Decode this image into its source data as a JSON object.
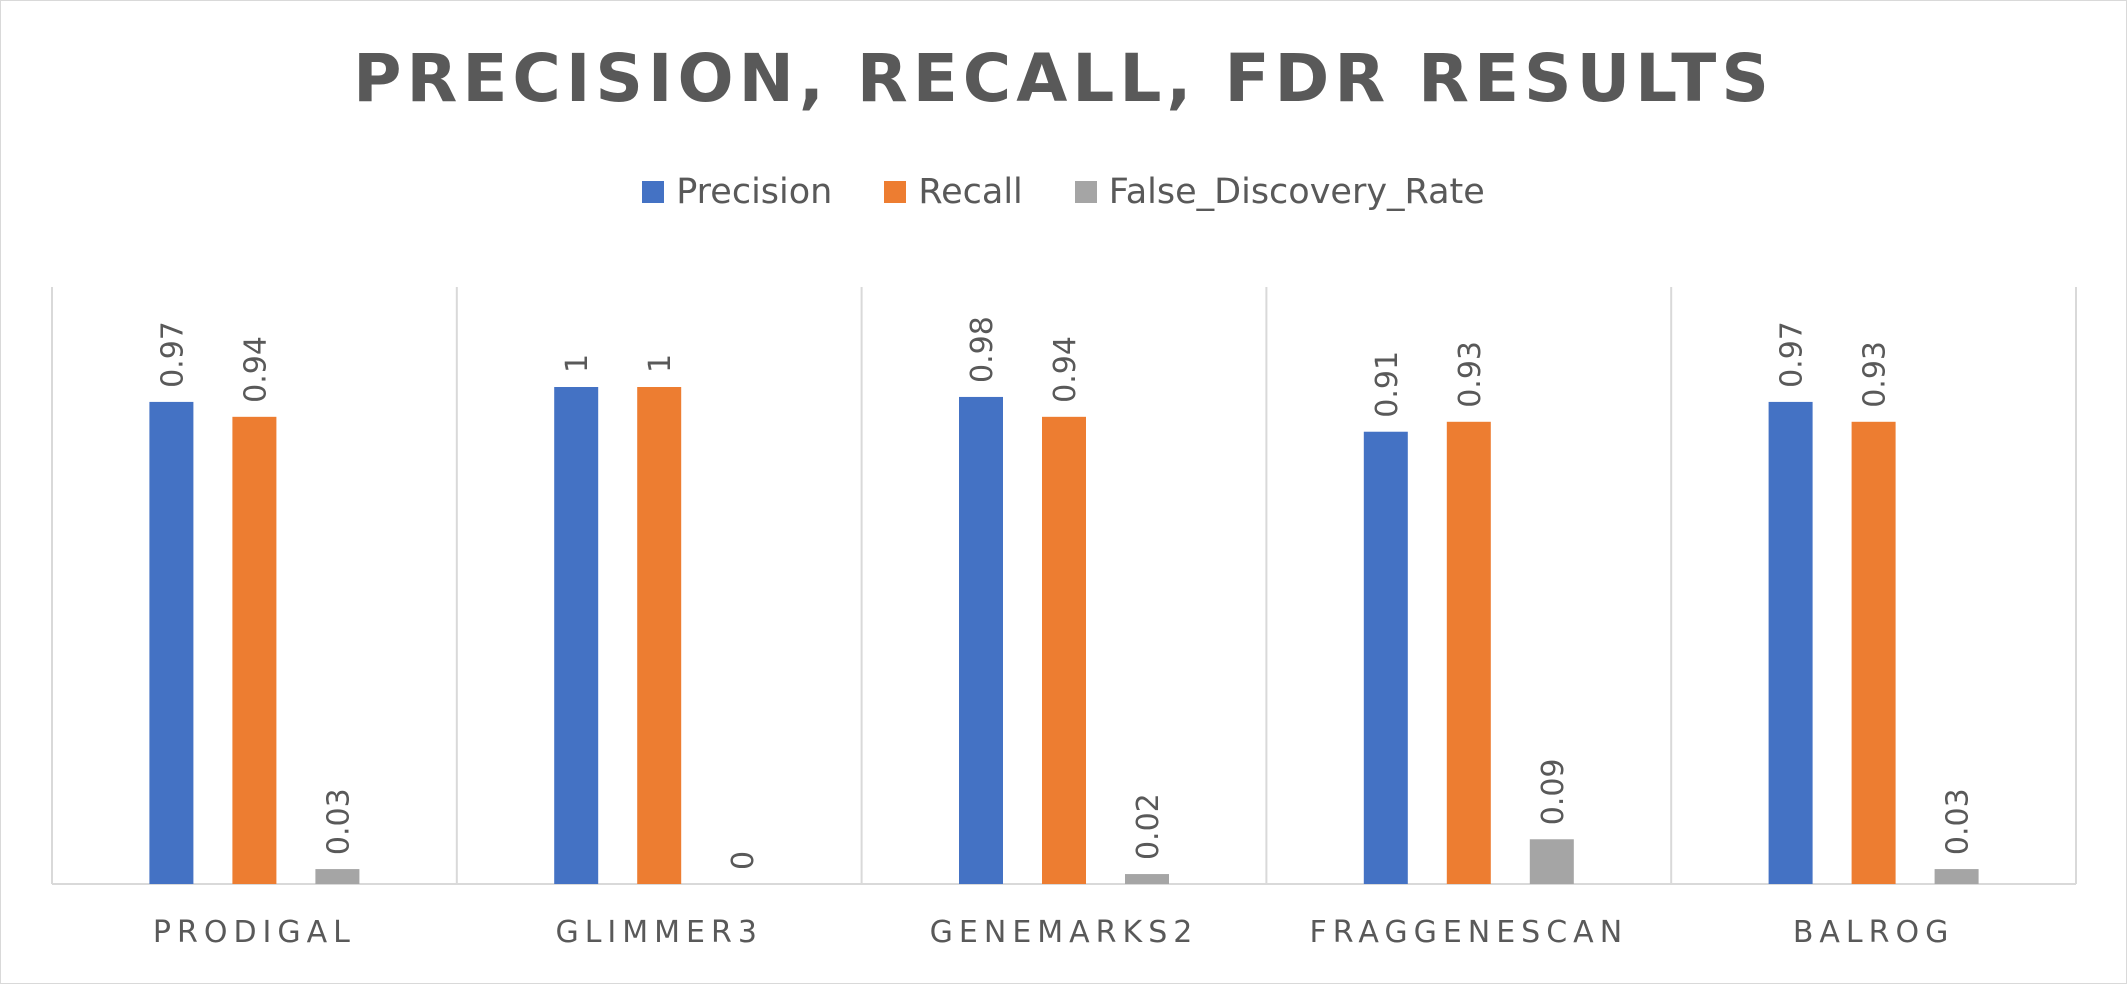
{
  "chart_data": {
    "type": "bar",
    "title": "PRECISION, RECALL, FDR RESULTS",
    "categories": [
      "PRODIGAL",
      "GLIMMER3",
      "GENEMARKS2",
      "FRAGGENESCAN",
      "BALROG"
    ],
    "series": [
      {
        "name": "Precision",
        "color": "#4472C4",
        "values": [
          0.97,
          1,
          0.98,
          0.91,
          0.97
        ],
        "labels": [
          "0.97",
          "1",
          "0.98",
          "0.91",
          "0.97"
        ]
      },
      {
        "name": "Recall",
        "color": "#ED7D31",
        "values": [
          0.94,
          1,
          0.94,
          0.93,
          0.93
        ],
        "labels": [
          "0.94",
          "1",
          "0.94",
          "0.93",
          "0.93"
        ]
      },
      {
        "name": "False_Discovery_Rate",
        "color": "#A5A5A5",
        "values": [
          0.03,
          0,
          0.02,
          0.09,
          0.03
        ],
        "labels": [
          "0.03",
          "0",
          "0.02",
          "0.09",
          "0.03"
        ]
      }
    ],
    "xlabel": "",
    "ylabel": "",
    "ylim": [
      0,
      1
    ],
    "grid": "vertical category separators",
    "legend_position": "top"
  }
}
